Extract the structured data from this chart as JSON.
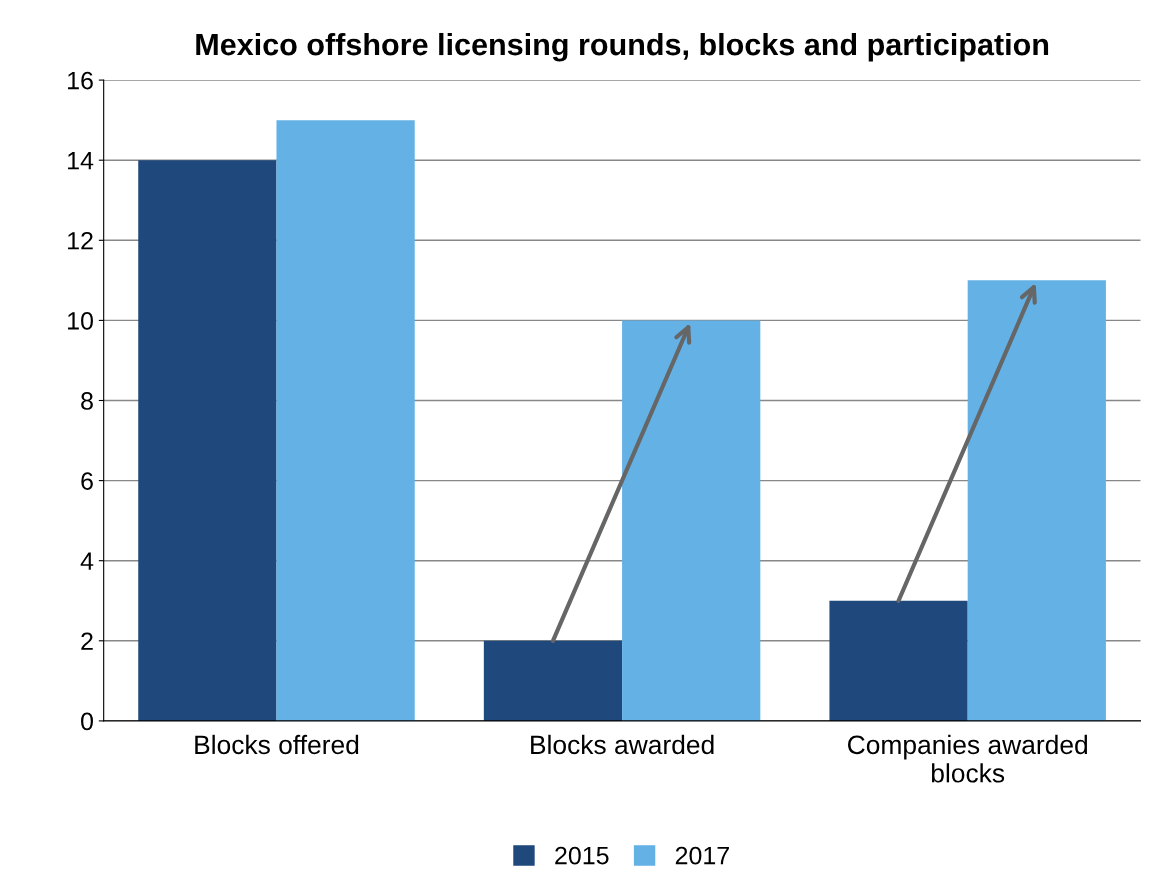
{
  "chart_data": {
    "type": "bar",
    "title": "Mexico offshore licensing rounds, blocks and participation",
    "categories": [
      "Blocks offered",
      "Blocks awarded",
      "Companies awarded\nblocks"
    ],
    "series": [
      {
        "name": "2015",
        "color": "#1f497d",
        "values": [
          14,
          2,
          3
        ]
      },
      {
        "name": "2017",
        "color": "#63b1e5",
        "values": [
          15,
          10,
          11
        ]
      }
    ],
    "ylim": [
      0,
      16
    ],
    "yticks": [
      0,
      2,
      4,
      6,
      8,
      10,
      12,
      14,
      16
    ],
    "grid": "y",
    "legend": "bottom"
  }
}
